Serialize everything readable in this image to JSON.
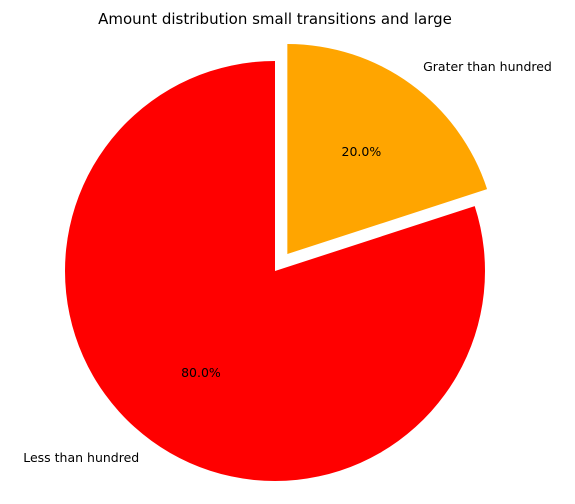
{
  "chart_data": {
    "type": "pie",
    "title": "Amount distribution small transitions and large",
    "slices": [
      {
        "label": "Grater than hundred",
        "value": 20.0,
        "pct_label": "20.0%",
        "color": "#ffa500",
        "explode": 0.1
      },
      {
        "label": "Less than hundred",
        "value": 80.0,
        "pct_label": "80.0%",
        "color": "#ff0000",
        "explode": 0.0
      }
    ],
    "start_angle_deg": 90,
    "direction": "clockwise"
  }
}
